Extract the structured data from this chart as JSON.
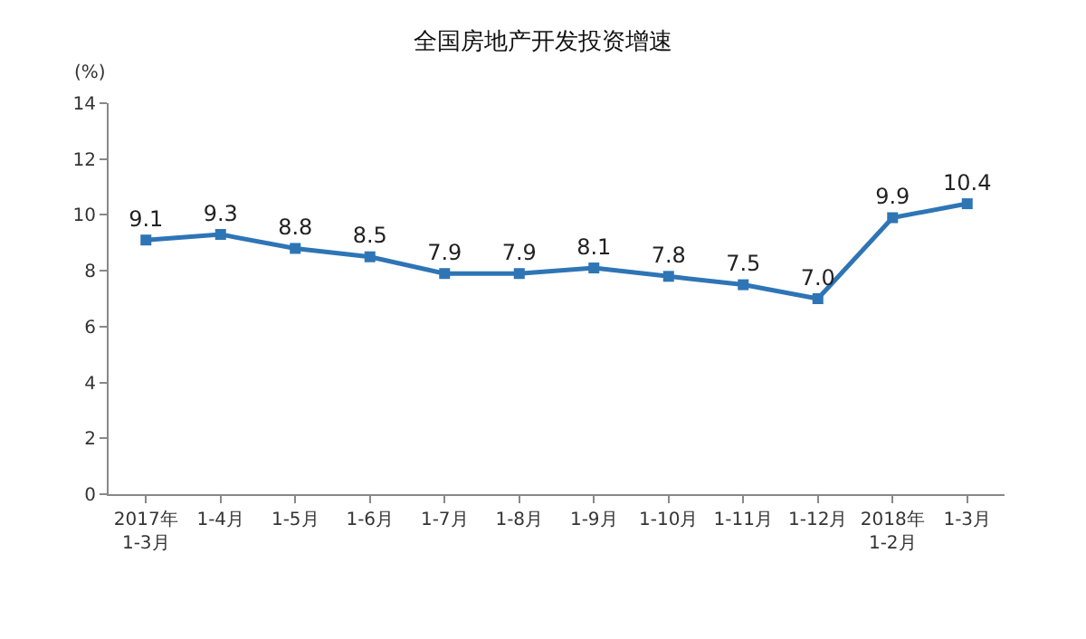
{
  "chart_data": {
    "type": "line",
    "title": "全国房地产开发投资增速",
    "ylabel": "(%)",
    "categories": [
      "2017年\n1-3月",
      "1-4月",
      "1-5月",
      "1-6月",
      "1-7月",
      "1-8月",
      "1-9月",
      "1-10月",
      "1-11月",
      "1-12月",
      "2018年\n1-2月",
      "1-3月"
    ],
    "series": [
      {
        "color": "#2e75b6",
        "values": [
          9.1,
          9.3,
          8.8,
          8.5,
          7.9,
          7.9,
          8.1,
          7.8,
          7.5,
          7.0,
          9.9,
          10.4
        ],
        "value_labels": [
          "9.1",
          "9.3",
          "8.8",
          "8.5",
          "7.9",
          "7.9",
          "8.1",
          "7.8",
          "7.5",
          "7.0",
          "9.9",
          "10.4"
        ]
      }
    ],
    "ylim": [
      0,
      14
    ],
    "yticks": [
      0,
      2,
      4,
      6,
      8,
      10,
      12,
      14
    ],
    "legend": false,
    "marker": "square",
    "line_style": "solid"
  }
}
